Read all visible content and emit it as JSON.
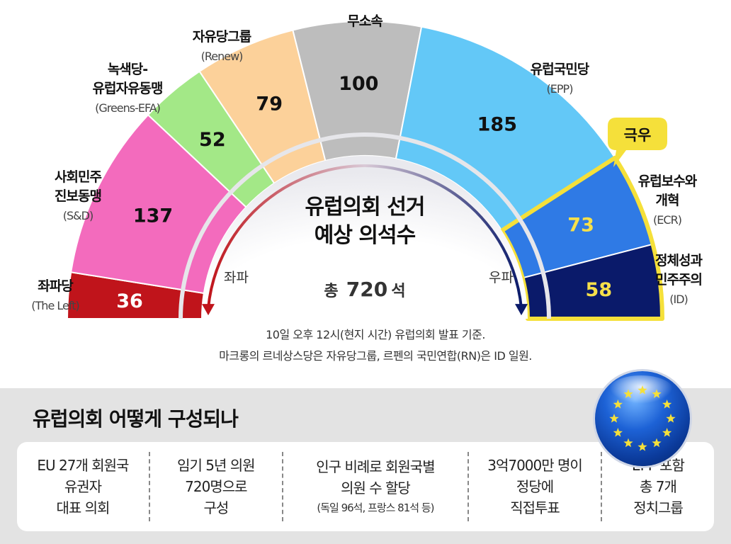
{
  "chart_data": {
    "type": "pie",
    "layout": "semicircle parliament chart",
    "title": "유럽의회 선거\n예상 의석수",
    "total_label": "총 720석",
    "total_prefix": "총",
    "total_value": "720",
    "total_unit": "석",
    "left_label": "좌파",
    "right_label": "우파",
    "far_right_badge": "극우",
    "categories": [
      "좌파당",
      "사회민주진보동맹",
      "녹색당-유럽자유동맹",
      "자유당그룹",
      "무소속",
      "유럽국민당",
      "유럽보수와개혁",
      "정체성과민주주의"
    ],
    "values": [
      36,
      137,
      52,
      79,
      100,
      185,
      73,
      58
    ],
    "groups": [
      {
        "name": "좌파당",
        "lines": [
          "좌파당"
        ],
        "abbr": "(The Left)",
        "seats": 36,
        "color": "#c0141b",
        "value_color": "#ffffff"
      },
      {
        "name": "사회민주진보동맹",
        "lines": [
          "사회민주",
          "진보동맹"
        ],
        "abbr": "(S&D)",
        "seats": 137,
        "color": "#f36bbd",
        "value_color": "#111111"
      },
      {
        "name": "녹색당-유럽자유동맹",
        "lines": [
          "녹색당-",
          "유럽자유동맹"
        ],
        "abbr": "(Greens-EFA)",
        "seats": 52,
        "color": "#a3e887",
        "value_color": "#111111"
      },
      {
        "name": "자유당그룹",
        "lines": [
          "자유당그룹"
        ],
        "abbr": "(Renew)",
        "seats": 79,
        "color": "#fcd19a",
        "value_color": "#111111"
      },
      {
        "name": "무소속",
        "lines": [
          "무소속"
        ],
        "abbr": "",
        "seats": 100,
        "color": "#bdbdbd",
        "value_color": "#111111"
      },
      {
        "name": "유럽국민당",
        "lines": [
          "유럽국민당"
        ],
        "abbr": "(EPP)",
        "seats": 185,
        "color": "#63c8f7",
        "value_color": "#111111"
      },
      {
        "name": "유럽보수와개혁",
        "lines": [
          "유럽보수와",
          "개혁"
        ],
        "abbr": "(ECR)",
        "seats": 73,
        "color": "#2f7ae5",
        "value_color": "#f6e04a"
      },
      {
        "name": "정체성과민주주의",
        "lines": [
          "정체성과",
          "민주주의"
        ],
        "abbr": "(ID)",
        "seats": 58,
        "color": "#0a1a6a",
        "value_color": "#f6e04a"
      }
    ],
    "notes": [
      "10일 오후 12시(현지 시간) 유럽의회 발표 기준.",
      "마크롱의 르네상스당은 자유당그룹, 르펜의 국민연합(RN)은 ID 일원."
    ]
  },
  "info": {
    "title": "유럽의회 어떻게 구성되나",
    "cards": [
      {
        "lines": [
          "EU 27개 회원국",
          "유권자",
          "대표 의회"
        ],
        "note": ""
      },
      {
        "lines": [
          "임기 5년 의원",
          "720명으로",
          "구성"
        ],
        "note": ""
      },
      {
        "lines": [
          "인구 비례로 회원국별",
          "의원 수 할당"
        ],
        "note": "(독일 96석, 프랑스 81석 등)"
      },
      {
        "lines": [
          "3억7000만 명이",
          "정당에",
          "직접투표"
        ],
        "note": ""
      },
      {
        "lines": [
          "EPP 포함",
          "총 7개",
          "정치그룹"
        ],
        "note": ""
      }
    ]
  },
  "colors": {
    "far_right_outline": "#f5e03a",
    "badge": "#f5e03a",
    "left_arrow": "#c0141b",
    "right_arrow": "#0a1a6a"
  }
}
